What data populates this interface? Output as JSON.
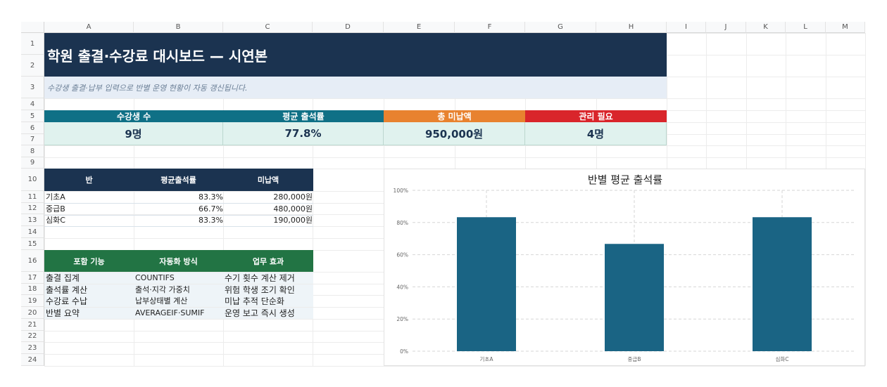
{
  "columns": [
    "A",
    "B",
    "C",
    "D",
    "E",
    "F",
    "G",
    "H",
    "I",
    "J",
    "K",
    "L",
    "M"
  ],
  "rows": [
    "1",
    "2",
    "3",
    "4",
    "5",
    "6",
    "7",
    "8",
    "9",
    "10",
    "11",
    "12",
    "13",
    "14",
    "15",
    "16",
    "17",
    "18",
    "19",
    "20",
    "21",
    "22",
    "23",
    "24"
  ],
  "title": "학원 출결·수강료 대시보드 — 시연본",
  "subtitle": "수강생 출결·납부 입력으로 반별 운영 현황이 자동 갱신됩니다.",
  "kpis": [
    {
      "label": "수강생 수",
      "value": "9명",
      "color": "#0f7086"
    },
    {
      "label": "평균 출석률",
      "value": "77.8%",
      "color": "#0f7086"
    },
    {
      "label": "총 미납액",
      "value": "950,000원",
      "color": "#e8822f"
    },
    {
      "label": "관리 필요",
      "value": "4명",
      "color": "#d9252b"
    }
  ],
  "class_table": {
    "headers": [
      "반",
      "평균출석률",
      "미납액"
    ],
    "rows": [
      {
        "name": "기초A",
        "rate": "83.3%",
        "unpaid": "280,000원"
      },
      {
        "name": "중급B",
        "rate": "66.7%",
        "unpaid": "480,000원"
      },
      {
        "name": "심화C",
        "rate": "83.3%",
        "unpaid": "190,000원"
      }
    ]
  },
  "feature_table": {
    "headers": [
      "포함 기능",
      "자동화 방식",
      "업무 효과"
    ],
    "rows": [
      {
        "feature": "출결 집계",
        "method": "COUNTIFS",
        "effect": "수기 횟수 계산 제거"
      },
      {
        "feature": "출석률 계산",
        "method": "출석·지각 가중치",
        "effect": "위험 학생 조기 확인"
      },
      {
        "feature": "수강료 수납",
        "method": "납부상태별 계산",
        "effect": "미납 추적 단순화"
      },
      {
        "feature": "반별 요약",
        "method": "AVERAGEIF·SUMIF",
        "effect": "운영 보고 즉시 생성"
      }
    ]
  },
  "chart_data": {
    "type": "bar",
    "title": "반별 평균 출석률",
    "categories": [
      "기초A",
      "중급B",
      "심화C"
    ],
    "values": [
      0.833,
      0.667,
      0.833
    ],
    "ylim": [
      0,
      1
    ],
    "ytick_labels": [
      "0%",
      "20%",
      "40%",
      "60%",
      "80%",
      "100%"
    ],
    "yticks": [
      0,
      0.2,
      0.4,
      0.6,
      0.8,
      1.0
    ],
    "grid": true,
    "legend": "none",
    "bar_color": "#1a6484"
  }
}
